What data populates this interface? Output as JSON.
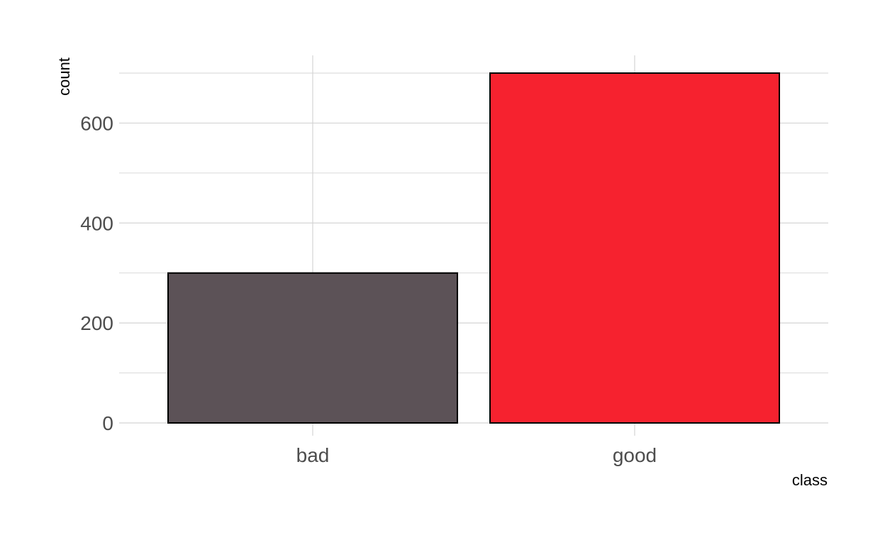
{
  "chart_data": {
    "type": "bar",
    "title": "",
    "xlabel": "class",
    "ylabel": "count",
    "categories": [
      "bad",
      "good"
    ],
    "values": [
      300,
      700
    ],
    "ylim": [
      0,
      700
    ],
    "yticks": [
      0,
      200,
      400,
      600
    ],
    "ytick_labels": [
      "0",
      "200",
      "400",
      "600"
    ],
    "grid": true,
    "legend": "none",
    "colors": {
      "bars": [
        "#5c5257",
        "#f6222f"
      ],
      "bar_outline": "#000000",
      "grid": "#d4d4d4",
      "background": "#ffffff"
    }
  }
}
